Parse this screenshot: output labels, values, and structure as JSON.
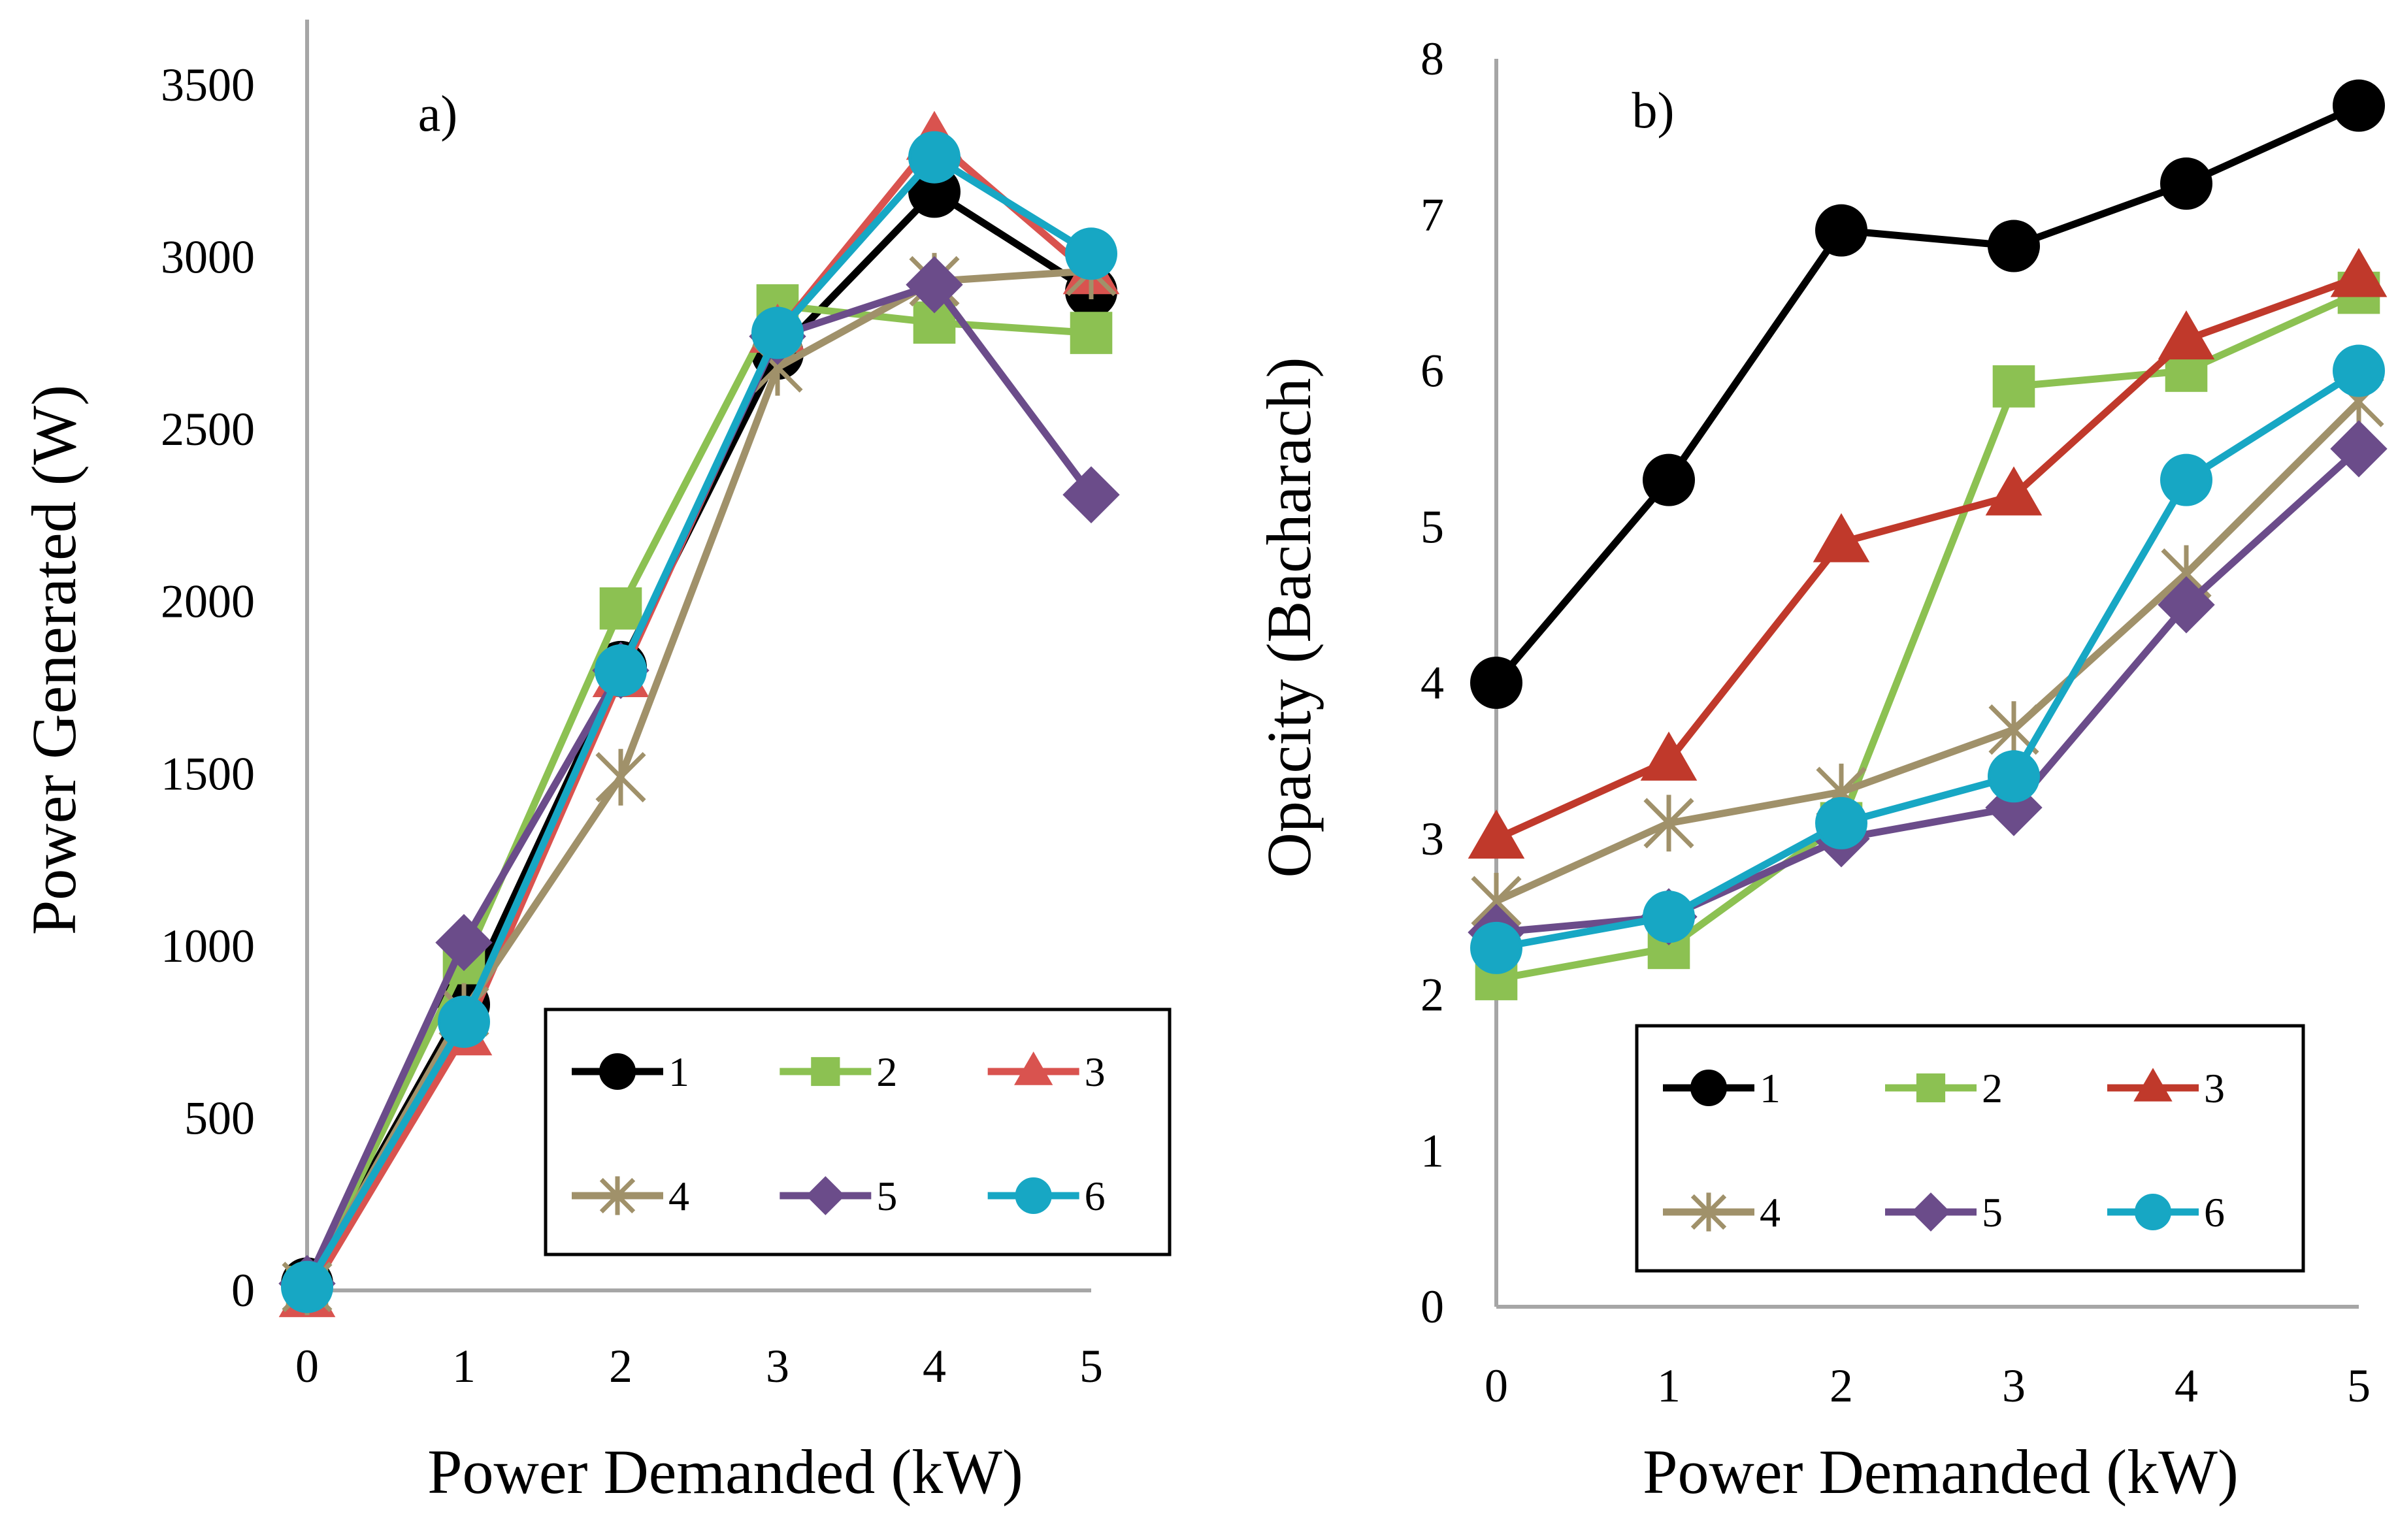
{
  "chart_data": [
    {
      "type": "line",
      "panel_label": "a)",
      "xlabel": "Power Demanded (kW)",
      "ylabel": "Power Generated (W)",
      "x": [
        0,
        1,
        2,
        3,
        4,
        5
      ],
      "xlim": [
        0,
        5
      ],
      "ylim": [
        0,
        3500
      ],
      "x_ticks": [
        "0",
        "1",
        "2",
        "3",
        "4",
        "5"
      ],
      "y_ticks": [
        "0",
        "500",
        "1000",
        "1500",
        "2000",
        "2500",
        "3000",
        "3500"
      ],
      "grid": false,
      "legend_position": "bottom-right",
      "series": [
        {
          "name": "1",
          "marker": "circle",
          "color": "#000000",
          "values": [
            20,
            830,
            1810,
            2720,
            3190,
            2900
          ]
        },
        {
          "name": "2",
          "marker": "square",
          "color": "#8cc152",
          "values": [
            10,
            950,
            1980,
            2860,
            2810,
            2780
          ]
        },
        {
          "name": "3",
          "marker": "triangle",
          "color": "#d9534f",
          "values": [
            -20,
            740,
            1780,
            2780,
            3340,
            2950
          ]
        },
        {
          "name": "4",
          "marker": "asterisk",
          "color": "#a0916a",
          "values": [
            10,
            810,
            1490,
            2680,
            2930,
            2960
          ]
        },
        {
          "name": "5",
          "marker": "diamond",
          "color": "#6b4c8a",
          "values": [
            20,
            1010,
            1800,
            2770,
            2920,
            2310
          ]
        },
        {
          "name": "6",
          "marker": "circle",
          "color": "#17a7c4",
          "values": [
            10,
            780,
            1800,
            2780,
            3290,
            3010
          ]
        }
      ]
    },
    {
      "type": "line",
      "panel_label": "b)",
      "xlabel": "Power Demanded (kW)",
      "ylabel": "Opacity (Bacharach)",
      "x": [
        0,
        1,
        2,
        3,
        4,
        5
      ],
      "xlim": [
        0,
        5
      ],
      "ylim": [
        0,
        8
      ],
      "x_ticks": [
        "0",
        "1",
        "2",
        "3",
        "4",
        "5"
      ],
      "y_ticks": [
        "0",
        "1",
        "2",
        "3",
        "4",
        "5",
        "6",
        "7",
        "8"
      ],
      "grid": false,
      "legend_position": "bottom-right",
      "series": [
        {
          "name": "1",
          "marker": "circle",
          "color": "#000000",
          "values": [
            4.0,
            5.3,
            6.9,
            6.8,
            7.2,
            7.7
          ]
        },
        {
          "name": "2",
          "marker": "square",
          "color": "#8cc152",
          "values": [
            2.1,
            2.3,
            3.1,
            5.9,
            6.0,
            6.5
          ]
        },
        {
          "name": "3",
          "marker": "triangle",
          "color": "#c0392b",
          "values": [
            3.0,
            3.5,
            4.9,
            5.2,
            6.2,
            6.6
          ]
        },
        {
          "name": "4",
          "marker": "asterisk",
          "color": "#a0916a",
          "values": [
            2.6,
            3.1,
            3.3,
            3.7,
            4.7,
            5.8
          ]
        },
        {
          "name": "5",
          "marker": "diamond",
          "color": "#6b4c8a",
          "values": [
            2.4,
            2.5,
            3.0,
            3.2,
            4.5,
            5.5
          ]
        },
        {
          "name": "6",
          "marker": "circle",
          "color": "#17a7c4",
          "values": [
            2.3,
            2.5,
            3.1,
            3.4,
            5.3,
            6.0
          ]
        }
      ]
    }
  ]
}
